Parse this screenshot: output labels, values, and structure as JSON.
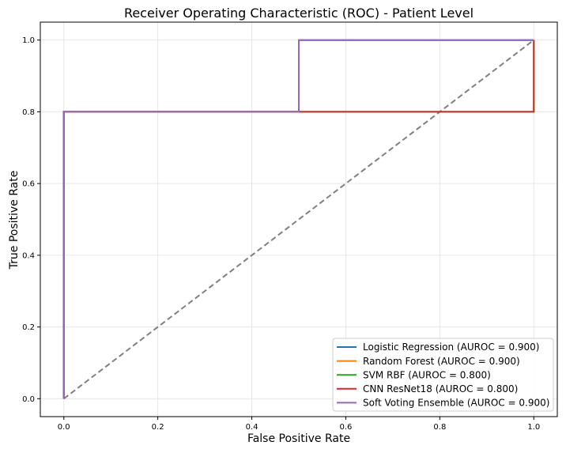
{
  "chart_data": {
    "type": "line",
    "title": "Receiver Operating Characteristic (ROC) - Patient Level",
    "xlabel": "False Positive Rate",
    "ylabel": "True Positive Rate",
    "xlim": [
      -0.05,
      1.05
    ],
    "ylim": [
      -0.05,
      1.05
    ],
    "xticks": [
      0.0,
      0.2,
      0.4,
      0.6,
      0.8,
      1.0
    ],
    "yticks": [
      0.0,
      0.2,
      0.4,
      0.6,
      0.8,
      1.0
    ],
    "xtick_labels": [
      "0.0",
      "0.2",
      "0.4",
      "0.6",
      "0.8",
      "1.0"
    ],
    "ytick_labels": [
      "0.0",
      "0.2",
      "0.4",
      "0.6",
      "0.8",
      "1.0"
    ],
    "grid": true,
    "legend_position": "lower-right",
    "diagonal": {
      "x": [
        0,
        1
      ],
      "y": [
        0,
        1
      ],
      "color": "#808080",
      "style": "dashed"
    },
    "series": [
      {
        "name": "Logistic Regression (AUROC = 0.900)",
        "color": "#1f77b4",
        "x": [
          0,
          0,
          0.5,
          0.5,
          1.0
        ],
        "y": [
          0,
          0.8,
          0.8,
          1.0,
          1.0
        ]
      },
      {
        "name": "Random Forest (AUROC = 0.900)",
        "color": "#ff7f0e",
        "x": [
          0,
          0,
          0.5,
          0.5,
          1.0
        ],
        "y": [
          0,
          0.8,
          0.8,
          1.0,
          1.0
        ]
      },
      {
        "name": "SVM RBF (AUROC = 0.800)",
        "color": "#2ca02c",
        "x": [
          0,
          0,
          1.0,
          1.0
        ],
        "y": [
          0,
          0.8,
          0.8,
          1.0
        ]
      },
      {
        "name": "CNN ResNet18 (AUROC = 0.800)",
        "color": "#d62728",
        "x": [
          0,
          0,
          1.0,
          1.0
        ],
        "y": [
          0,
          0.8,
          0.8,
          1.0
        ]
      },
      {
        "name": "Soft Voting Ensemble (AUROC = 0.900)",
        "color": "#9467bd",
        "x": [
          0,
          0,
          0.5,
          0.5,
          1.0
        ],
        "y": [
          0,
          0.8,
          0.8,
          1.0,
          1.0
        ]
      }
    ]
  }
}
